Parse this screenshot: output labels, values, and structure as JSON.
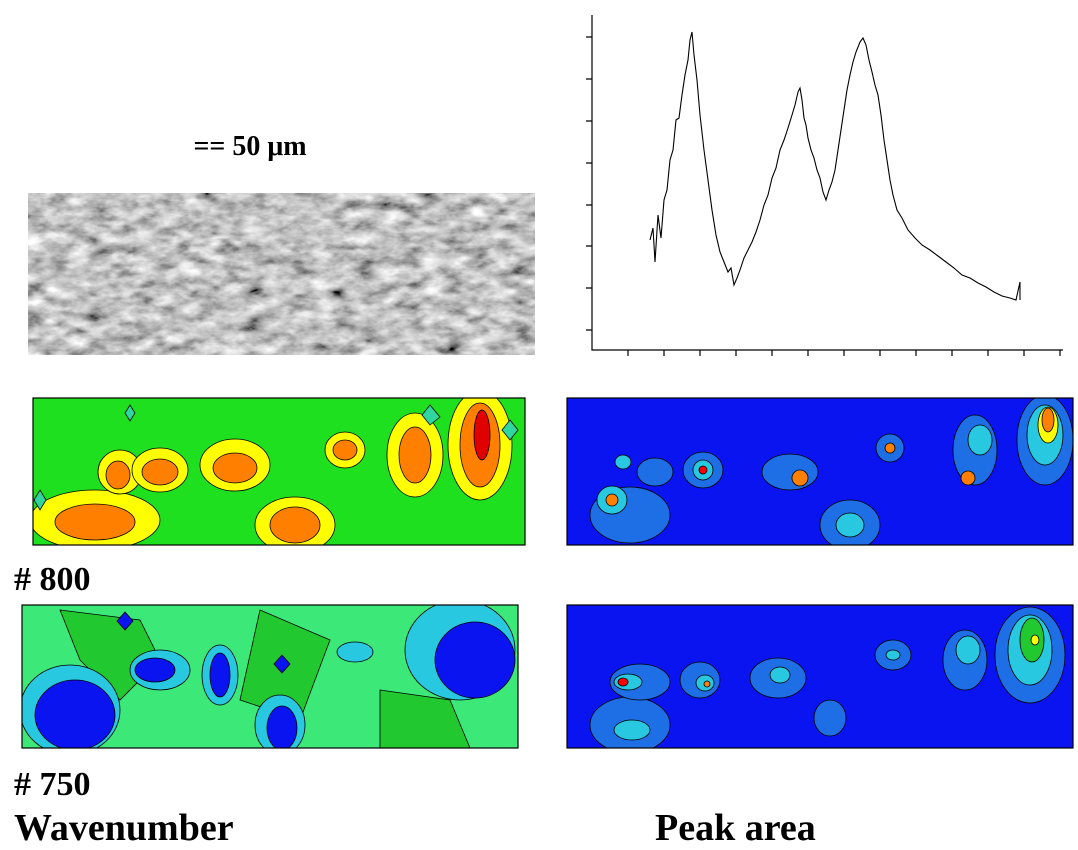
{
  "scale_label": "== 50 μm",
  "maps": {
    "row1_label": "# 800",
    "row2_label": "# 750"
  },
  "columns": {
    "left": "Wavenumber",
    "right": "Peak area"
  }
}
